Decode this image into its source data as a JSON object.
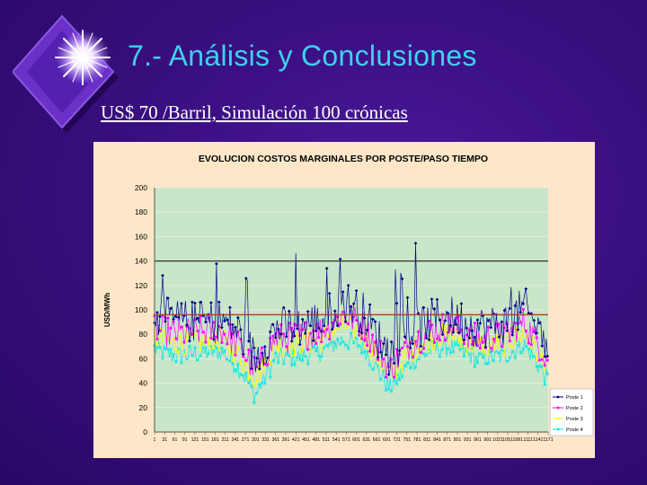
{
  "slide": {
    "title": "7.- Análisis y Conclusiones",
    "subtitle": "US$ 70 /Barril, Simulación 100 crónicas",
    "colors": {
      "background": "#3a0f80",
      "title": "#3fd0f0",
      "subtitle": "#ffffff",
      "chart_background": "#fde7c8",
      "plot_background": "#c8e6c8"
    }
  },
  "chart_data": {
    "type": "line",
    "title": "EVOLUCION COSTOS MARGINALES POR POSTE/PASO TIEMPO",
    "xlabel": "",
    "ylabel": "USD/MWh",
    "ylim": [
      0,
      200
    ],
    "y_ticks": [
      0,
      20,
      40,
      60,
      80,
      100,
      120,
      140,
      160,
      180,
      200
    ],
    "x_tick_labels": [
      "1",
      "31",
      "61",
      "91",
      "121",
      "151",
      "181",
      "211",
      "241",
      "271",
      "301",
      "331",
      "361",
      "391",
      "421",
      "451",
      "481",
      "511",
      "541",
      "571",
      "601",
      "631",
      "661",
      "691",
      "721",
      "751",
      "781",
      "811",
      "841",
      "871",
      "901",
      "931",
      "961",
      "991",
      "1021",
      "1051",
      "1081",
      "1111",
      "1141",
      "1171"
    ],
    "x_range": [
      1,
      1171
    ],
    "grid": {
      "horizontal": true,
      "vertical": false
    },
    "legend": "right",
    "reference_lines": [
      {
        "name": "upper",
        "y": 140,
        "color": "#333333"
      },
      {
        "name": "average",
        "y": 96,
        "color": "#b04020"
      }
    ],
    "series": [
      {
        "name": "Poste 1",
        "color": "#00008b",
        "marker": "diamond",
        "profile": {
          "x": [
            1,
            60,
            120,
            200,
            260,
            300,
            360,
            430,
            500,
            560,
            620,
            700,
            760,
            830,
            880,
            960,
            1040,
            1100,
            1171
          ],
          "y": [
            95,
            92,
            90,
            92,
            80,
            60,
            85,
            86,
            92,
            108,
            98,
            62,
            82,
            92,
            95,
            86,
            88,
            102,
            70
          ]
        }
      },
      {
        "name": "Poste 2",
        "color": "#ff00ff",
        "marker": "square",
        "profile": {
          "x": [
            1,
            60,
            120,
            200,
            260,
            300,
            360,
            430,
            500,
            560,
            620,
            700,
            760,
            830,
            880,
            960,
            1040,
            1100,
            1171
          ],
          "y": [
            85,
            80,
            82,
            84,
            68,
            50,
            76,
            78,
            84,
            96,
            88,
            52,
            72,
            84,
            87,
            76,
            78,
            90,
            60
          ]
        }
      },
      {
        "name": "Poste 3",
        "color": "#ffff00",
        "marker": "triangle",
        "profile": {
          "x": [
            1,
            60,
            120,
            200,
            260,
            300,
            360,
            430,
            500,
            560,
            620,
            700,
            760,
            830,
            880,
            960,
            1040,
            1100,
            1171
          ],
          "y": [
            78,
            72,
            74,
            76,
            60,
            44,
            70,
            72,
            76,
            88,
            80,
            46,
            66,
            78,
            80,
            70,
            72,
            82,
            52
          ]
        }
      },
      {
        "name": "Poste 4",
        "color": "#00e5e5",
        "marker": "x",
        "profile": {
          "x": [
            1,
            60,
            120,
            200,
            260,
            300,
            360,
            430,
            500,
            560,
            620,
            700,
            760,
            830,
            880,
            960,
            1040,
            1100,
            1171
          ],
          "y": [
            68,
            62,
            64,
            66,
            50,
            30,
            60,
            62,
            66,
            76,
            70,
            36,
            56,
            68,
            70,
            60,
            62,
            72,
            42
          ]
        }
      }
    ]
  }
}
